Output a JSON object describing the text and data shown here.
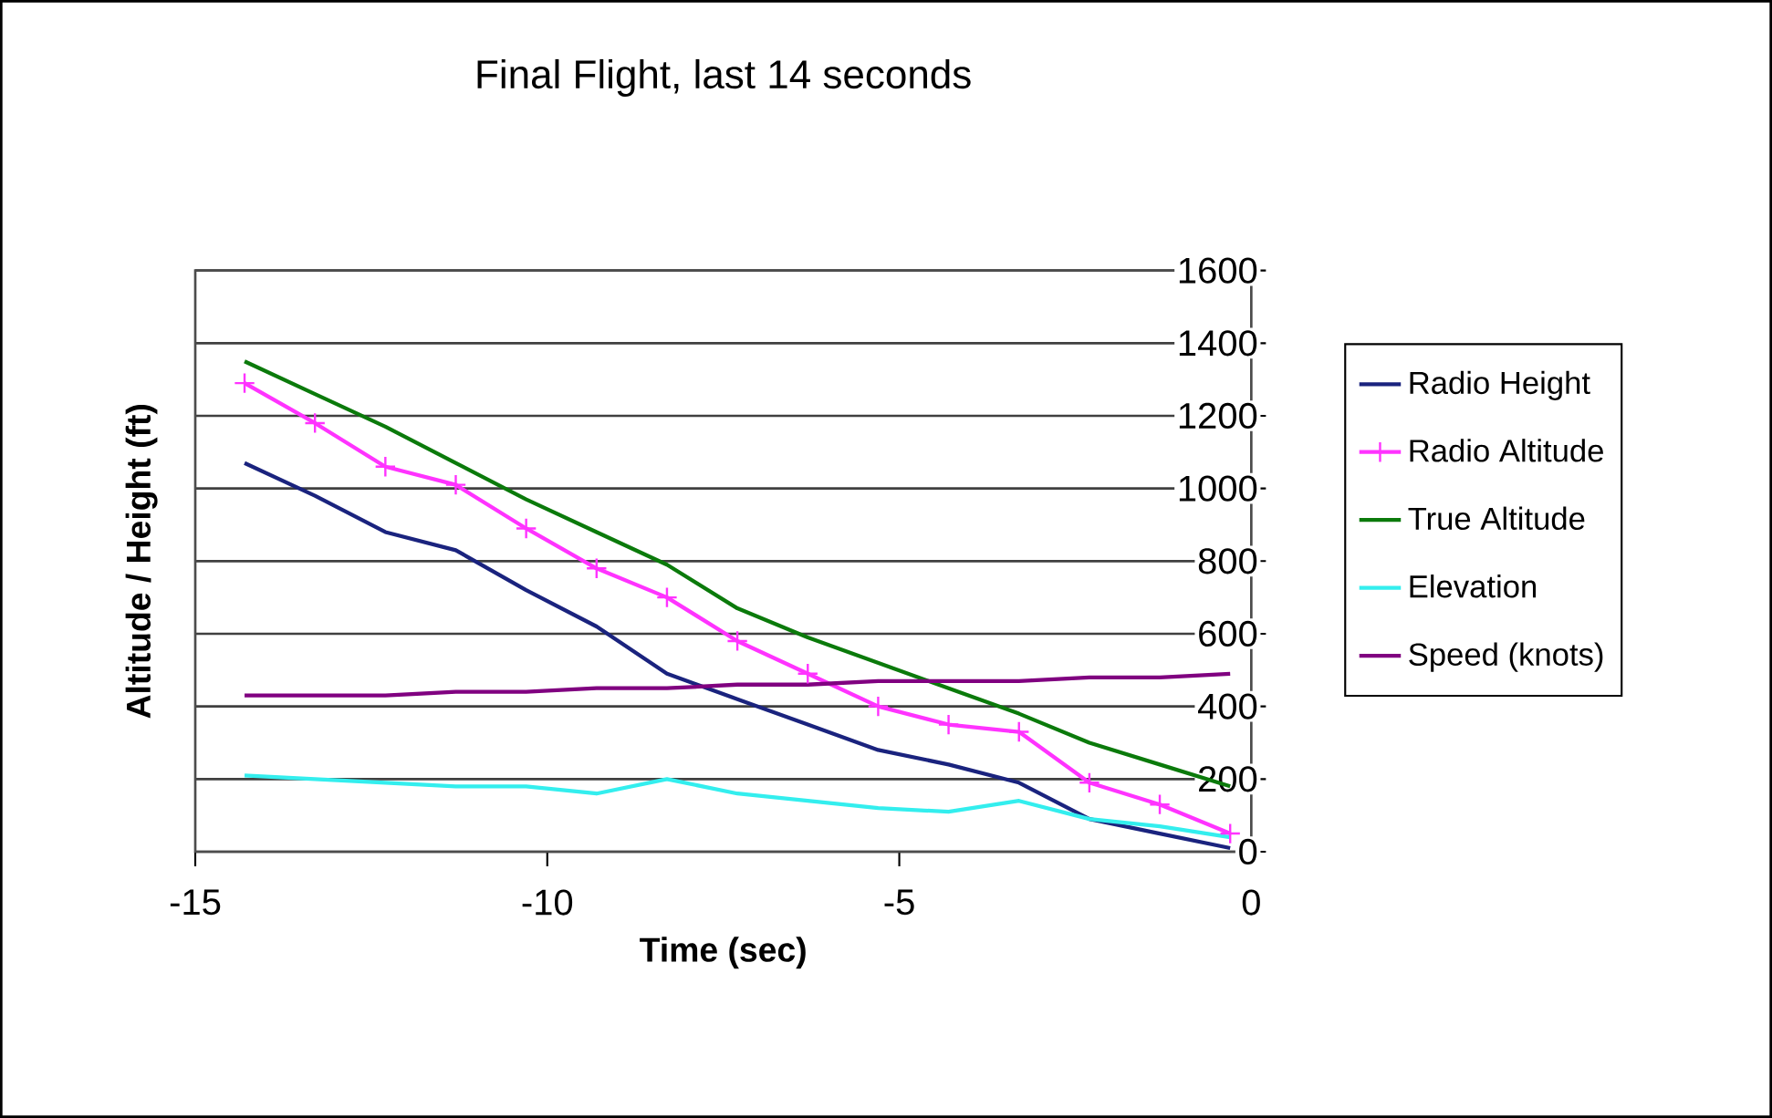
{
  "chart_data": {
    "type": "line",
    "title": "Final Flight, last 14 seconds",
    "xlabel": "Time (sec)",
    "ylabel": "Altitude / Height (ft)",
    "x": [
      -14.3,
      -13.3,
      -12.3,
      -11.3,
      -10.3,
      -9.3,
      -8.3,
      -7.3,
      -6.3,
      -5.3,
      -4.3,
      -3.3,
      -2.3,
      -1.3,
      -0.3
    ],
    "series": [
      {
        "name": "Radio Height",
        "color": "#1a237e",
        "values": [
          1070,
          980,
          880,
          830,
          720,
          620,
          490,
          420,
          350,
          280,
          240,
          190,
          90,
          50,
          10
        ]
      },
      {
        "name": "Radio Altitude",
        "color": "#ff33ff",
        "marker": "cross",
        "values": [
          1290,
          1180,
          1060,
          1010,
          890,
          780,
          700,
          580,
          490,
          400,
          350,
          330,
          190,
          130,
          50
        ]
      },
      {
        "name": "True Altitude",
        "color": "#0b7a0b",
        "values": [
          1350,
          1260,
          1170,
          1070,
          970,
          880,
          790,
          670,
          590,
          520,
          450,
          380,
          300,
          240,
          180
        ]
      },
      {
        "name": "Elevation",
        "color": "#33eeee",
        "values": [
          210,
          200,
          190,
          180,
          180,
          160,
          200,
          160,
          140,
          120,
          110,
          140,
          90,
          70,
          40
        ]
      },
      {
        "name": "Speed (knots)",
        "color": "#800080",
        "values": [
          430,
          430,
          430,
          440,
          440,
          450,
          450,
          460,
          460,
          470,
          470,
          470,
          480,
          480,
          490
        ]
      }
    ],
    "xlim": [
      -15,
      0
    ],
    "xticks": [
      -15,
      -10,
      -5,
      0
    ],
    "ylim": [
      0,
      1600
    ],
    "yticks": [
      0,
      200,
      400,
      600,
      800,
      1000,
      1200,
      1400,
      1600
    ],
    "grid": "y",
    "legend": "right",
    "marker": "none",
    "line_style": "solid"
  }
}
